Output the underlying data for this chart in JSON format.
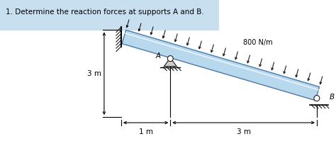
{
  "title": "1. Determine the reaction forces at supports A and B.",
  "title_fontsize": 7.5,
  "title_color": "#000000",
  "title_box_color": "#c8dff0",
  "beam_color": "#b8d8ee",
  "beam_edge_color": "#4a7aaa",
  "load_label": "800 N/m",
  "label_A": "A",
  "label_B": "B",
  "dim_3m_label": "3 m",
  "dim_1m_label": "1 m",
  "dim_vert_label": "3 m",
  "background_color": "#ffffff",
  "arrow_color": "#000000"
}
